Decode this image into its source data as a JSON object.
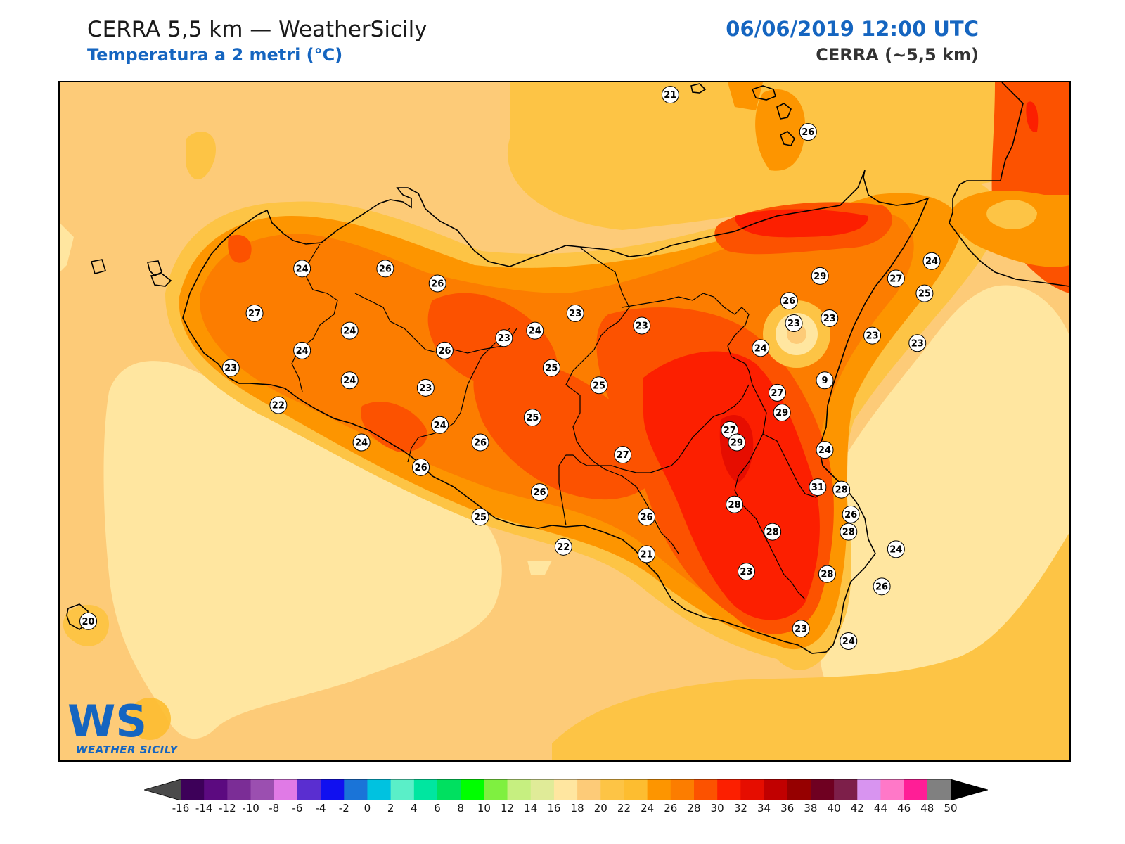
{
  "header": {
    "title": "CERRA 5,5 km — WeatherSicily",
    "subtitle": "Temperatura a 2 metri (°C)",
    "datetime": "06/06/2019 12:00 UTC",
    "model": "CERRA (~5,5 km)"
  },
  "logo": {
    "mark": "WS",
    "caption": "WEATHER SICILY"
  },
  "colorbar": {
    "ticks": [
      "-16",
      "-14",
      "-12",
      "-10",
      "-8",
      "-6",
      "-4",
      "-2",
      "0",
      "2",
      "4",
      "6",
      "8",
      "10",
      "12",
      "14",
      "16",
      "18",
      "20",
      "22",
      "24",
      "26",
      "28",
      "30",
      "32",
      "34",
      "36",
      "38",
      "40",
      "42",
      "44",
      "46",
      "48",
      "50"
    ],
    "colors": [
      "#3d0059",
      "#5c0a80",
      "#7b2d96",
      "#9b4fb0",
      "#e07ae6",
      "#5a2ed0",
      "#1010f0",
      "#1a74d8",
      "#00c2e0",
      "#5aefc8",
      "#00e6a0",
      "#00e060",
      "#00ff00",
      "#7ff040",
      "#c6ef80",
      "#e0eb98",
      "#ffe6a0",
      "#fdcb78",
      "#fdc445",
      "#fdbd30",
      "#fd9500",
      "#fc7d00",
      "#fc5200",
      "#fc1f00",
      "#e60d00",
      "#c10000",
      "#960000",
      "#6f0021",
      "#7d1f4a",
      "#d894f0",
      "#ff78c8",
      "#ff1e96",
      "#808080",
      "#3a3a3a"
    ]
  },
  "stations": [
    {
      "value": "21",
      "lon": 14.55,
      "lat": 38.9
    },
    {
      "value": "26",
      "lon": 15.13,
      "lat": 38.75
    },
    {
      "value": "24",
      "lon": 13.0,
      "lat": 38.2
    },
    {
      "value": "26",
      "lon": 13.35,
      "lat": 38.2
    },
    {
      "value": "26",
      "lon": 13.57,
      "lat": 38.14
    },
    {
      "value": "27",
      "lon": 12.8,
      "lat": 38.02
    },
    {
      "value": "24",
      "lon": 13.2,
      "lat": 37.95
    },
    {
      "value": "23",
      "lon": 12.7,
      "lat": 37.8
    },
    {
      "value": "24",
      "lon": 13.0,
      "lat": 37.87
    },
    {
      "value": "24",
      "lon": 13.2,
      "lat": 37.75
    },
    {
      "value": "22",
      "lon": 12.9,
      "lat": 37.65
    },
    {
      "value": "24",
      "lon": 13.25,
      "lat": 37.5
    },
    {
      "value": "26",
      "lon": 13.6,
      "lat": 37.87
    },
    {
      "value": "23",
      "lon": 13.85,
      "lat": 37.92
    },
    {
      "value": "24",
      "lon": 13.58,
      "lat": 37.57
    },
    {
      "value": "23",
      "lon": 13.52,
      "lat": 37.72
    },
    {
      "value": "24",
      "lon": 13.98,
      "lat": 37.95
    },
    {
      "value": "23",
      "lon": 14.15,
      "lat": 38.02
    },
    {
      "value": "25",
      "lon": 14.05,
      "lat": 37.8
    },
    {
      "value": "25",
      "lon": 14.25,
      "lat": 37.73
    },
    {
      "value": "25",
      "lon": 13.97,
      "lat": 37.6
    },
    {
      "value": "26",
      "lon": 13.75,
      "lat": 37.5
    },
    {
      "value": "26",
      "lon": 13.5,
      "lat": 37.4
    },
    {
      "value": "27",
      "lon": 14.35,
      "lat": 37.45
    },
    {
      "value": "26",
      "lon": 14.0,
      "lat": 37.3
    },
    {
      "value": "25",
      "lon": 13.75,
      "lat": 37.2
    },
    {
      "value": "22",
      "lon": 14.1,
      "lat": 37.08
    },
    {
      "value": "21",
      "lon": 14.45,
      "lat": 37.05
    },
    {
      "value": "26",
      "lon": 14.45,
      "lat": 37.2
    },
    {
      "value": "27",
      "lon": 14.8,
      "lat": 37.55
    },
    {
      "value": "28",
      "lon": 14.82,
      "lat": 37.25
    },
    {
      "value": "23",
      "lon": 14.43,
      "lat": 37.97
    },
    {
      "value": "24",
      "lon": 14.93,
      "lat": 37.88
    },
    {
      "value": "26",
      "lon": 15.05,
      "lat": 38.07
    },
    {
      "value": "23",
      "lon": 15.07,
      "lat": 37.98
    },
    {
      "value": "29",
      "lon": 14.83,
      "lat": 37.5
    },
    {
      "value": "29",
      "lon": 15.02,
      "lat": 37.62
    },
    {
      "value": "27",
      "lon": 15.0,
      "lat": 37.7
    },
    {
      "value": "31",
      "lon": 15.17,
      "lat": 37.32
    },
    {
      "value": "28",
      "lon": 15.27,
      "lat": 37.31
    },
    {
      "value": "28",
      "lon": 14.98,
      "lat": 37.14
    },
    {
      "value": "28",
      "lon": 15.3,
      "lat": 37.14
    },
    {
      "value": "29",
      "lon": 15.18,
      "lat": 38.17
    },
    {
      "value": "27",
      "lon": 15.5,
      "lat": 38.16
    },
    {
      "value": "24",
      "lon": 15.65,
      "lat": 38.23
    },
    {
      "value": "25",
      "lon": 15.62,
      "lat": 38.1
    },
    {
      "value": "23",
      "lon": 15.22,
      "lat": 38.0
    },
    {
      "value": "23",
      "lon": 15.4,
      "lat": 37.93
    },
    {
      "value": "23",
      "lon": 15.59,
      "lat": 37.9
    },
    {
      "value": "9",
      "lon": 15.2,
      "lat": 37.75
    },
    {
      "value": "24",
      "lon": 15.2,
      "lat": 37.47
    },
    {
      "value": "26",
      "lon": 15.31,
      "lat": 37.21
    },
    {
      "value": "24",
      "lon": 15.5,
      "lat": 37.07
    },
    {
      "value": "23",
      "lon": 14.87,
      "lat": 36.98
    },
    {
      "value": "28",
      "lon": 15.21,
      "lat": 36.97
    },
    {
      "value": "26",
      "lon": 15.44,
      "lat": 36.92
    },
    {
      "value": "23",
      "lon": 15.1,
      "lat": 36.75
    },
    {
      "value": "24",
      "lon": 15.3,
      "lat": 36.7
    },
    {
      "value": "20",
      "lon": 12.1,
      "lat": 36.78
    }
  ]
}
